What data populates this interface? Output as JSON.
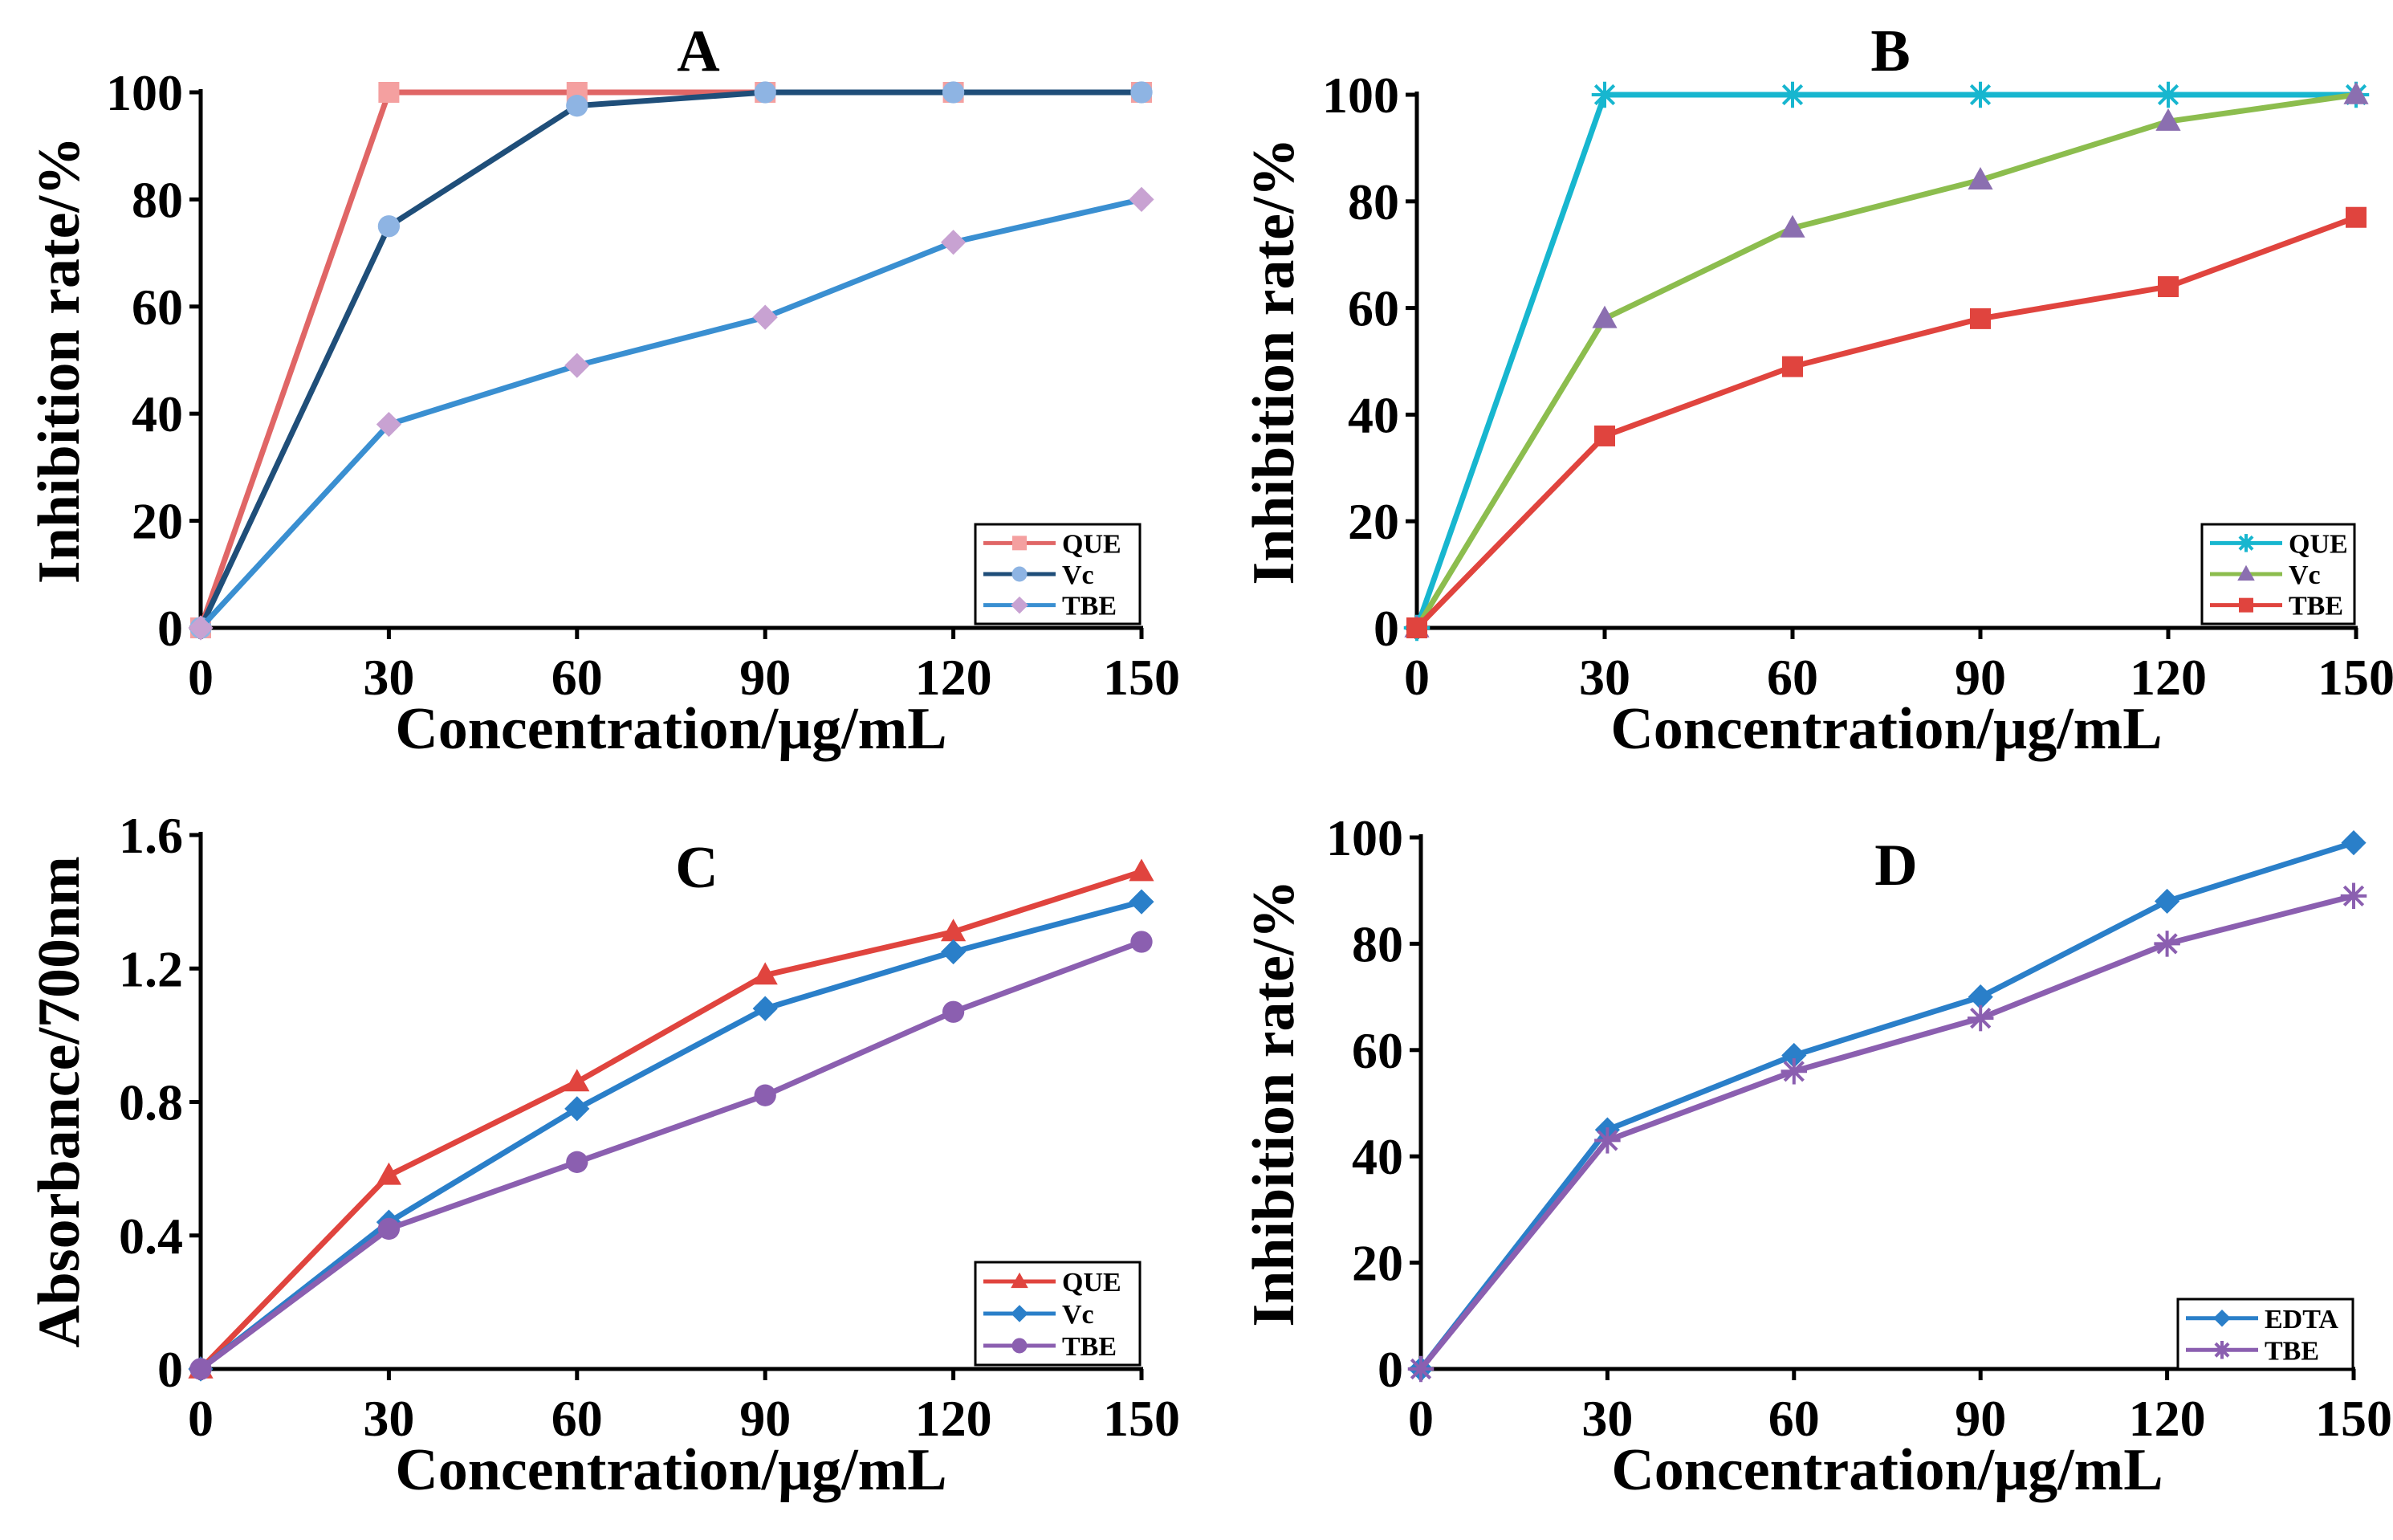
{
  "chart_data": [
    {
      "type": "line",
      "title": "A",
      "xlabel": "Concentration/μg/mL",
      "ylabel": "Inhibition rate/%",
      "x": [
        0,
        30,
        60,
        90,
        120,
        150
      ],
      "xticks": [
        "0",
        "30",
        "60",
        "90",
        "120",
        "150"
      ],
      "yticks": [
        "0",
        "20",
        "40",
        "60",
        "80",
        "100"
      ],
      "xlim": [
        0,
        150
      ],
      "ylim": [
        0,
        100
      ],
      "legend_position": "bottom-right",
      "series": [
        {
          "name": "QUE",
          "values": [
            0,
            100,
            100,
            100,
            100,
            100
          ],
          "color": "#e06666",
          "marker_color": "#f4a0a0",
          "marker": "square"
        },
        {
          "name": "Vc",
          "values": [
            0,
            75,
            97.5,
            100,
            100,
            100
          ],
          "color": "#1f4e79",
          "marker_color": "#8eb4e3",
          "marker": "circle"
        },
        {
          "name": "TBE",
          "values": [
            0,
            38,
            49,
            58,
            72,
            80
          ],
          "color": "#3a8fd1",
          "marker_color": "#c8a2d2",
          "marker": "diamond"
        }
      ]
    },
    {
      "type": "line",
      "title": "B",
      "xlabel": "Concentration/μg/mL",
      "ylabel": "Inhibition rate/%",
      "x": [
        0,
        30,
        60,
        90,
        120,
        150
      ],
      "xticks": [
        "0",
        "30",
        "60",
        "90",
        "120",
        "150"
      ],
      "yticks": [
        "0",
        "20",
        "40",
        "60",
        "80",
        "100"
      ],
      "xlim": [
        0,
        150
      ],
      "ylim": [
        0,
        100
      ],
      "legend_position": "bottom-right",
      "series": [
        {
          "name": "QUE",
          "values": [
            0,
            100,
            100,
            100,
            100,
            100
          ],
          "color": "#17b6cf",
          "marker_color": "#17b6cf",
          "marker": "asterisk"
        },
        {
          "name": "Vc",
          "values": [
            0,
            58,
            75,
            84,
            95,
            100
          ],
          "color": "#8cbd4e",
          "marker_color": "#8b6fb0",
          "marker": "triangle"
        },
        {
          "name": "TBE",
          "values": [
            0,
            36,
            49,
            58,
            64,
            77
          ],
          "color": "#e0443e",
          "marker_color": "#e0443e",
          "marker": "square"
        }
      ]
    },
    {
      "type": "line",
      "title": "C",
      "xlabel": "Concentration/μg/mL",
      "ylabel": "Absorbance/700nm",
      "x": [
        0,
        30,
        60,
        90,
        120,
        150
      ],
      "xticks": [
        "0",
        "30",
        "60",
        "90",
        "120",
        "150"
      ],
      "yticks": [
        "0",
        "0.4",
        "0.8",
        "1.2",
        "1.6"
      ],
      "xlim": [
        0,
        150
      ],
      "ylim": [
        0,
        1.6
      ],
      "legend_position": "bottom-right",
      "series": [
        {
          "name": "QUE",
          "values": [
            0,
            0.58,
            0.86,
            1.18,
            1.31,
            1.49
          ],
          "color": "#e0443e",
          "marker_color": "#e0443e",
          "marker": "triangle"
        },
        {
          "name": "Vc",
          "values": [
            0,
            0.44,
            0.78,
            1.08,
            1.25,
            1.4
          ],
          "color": "#2a7fc9",
          "marker_color": "#2a7fc9",
          "marker": "diamond"
        },
        {
          "name": "TBE",
          "values": [
            0,
            0.42,
            0.62,
            0.82,
            1.07,
            1.28
          ],
          "color": "#8b5fb0",
          "marker_color": "#8b5fb0",
          "marker": "circle"
        }
      ]
    },
    {
      "type": "line",
      "title": "D",
      "xlabel": "Concentration/μg/mL",
      "ylabel": "Inhibition rate/%",
      "x": [
        0,
        30,
        60,
        90,
        120,
        150
      ],
      "xticks": [
        "0",
        "30",
        "60",
        "90",
        "120",
        "150"
      ],
      "yticks": [
        "0",
        "20",
        "40",
        "60",
        "80",
        "100"
      ],
      "xlim": [
        0,
        150
      ],
      "ylim": [
        0,
        100
      ],
      "legend_position": "bottom-right",
      "series": [
        {
          "name": "EDTA",
          "values": [
            0,
            45,
            59,
            70,
            88,
            99
          ],
          "color": "#2a7fc9",
          "marker_color": "#2a7fc9",
          "marker": "diamond"
        },
        {
          "name": "TBE",
          "values": [
            0,
            43,
            56,
            66,
            80,
            89
          ],
          "color": "#8b5fb0",
          "marker_color": "#8b5fb0",
          "marker": "asterisk"
        }
      ]
    }
  ]
}
